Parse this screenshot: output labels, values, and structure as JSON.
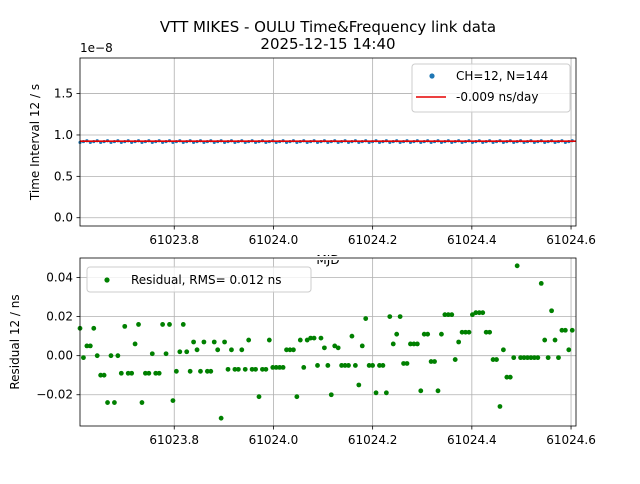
{
  "title_line1": "VTT MIKES - OULU Time&Frequency link data",
  "title_line2": "2025-12-15 14:40",
  "colors": {
    "blue": "#1f77b4",
    "red": "#e50000",
    "green": "#008000",
    "grid": "#b0b0b0"
  },
  "chart_data": [
    {
      "type": "scatter",
      "ylabel": "Time Interval 12 / s",
      "xlabel": "MJD",
      "offset_label": "1e−8",
      "xlim": [
        61023.61,
        61024.61
      ],
      "ylim": [
        -0.1,
        1.93
      ],
      "x_ticks": [
        61023.8,
        61024.0,
        61024.2,
        61024.4,
        61024.6
      ],
      "x_tick_labels": [
        "61023.8",
        "61024.0",
        "61024.2",
        "61024.4",
        "61024.6"
      ],
      "y_ticks": [
        0.0,
        0.5,
        1.0,
        1.5
      ],
      "y_tick_labels": [
        "0.0",
        "0.5",
        "1.0",
        "1.5"
      ],
      "grid": true,
      "legend_position": "top-right",
      "legend": [
        "CH=12, N=144",
        "-0.009 ns/day"
      ],
      "series": [
        {
          "name": "CH=12, N=144",
          "kind": "points",
          "x_start": 61023.61,
          "x_step": 0.00694,
          "count": 144,
          "y_value": 0.92,
          "y_jitter": 0.02
        },
        {
          "name": "-0.009 ns/day",
          "kind": "line",
          "x": [
            61023.61,
            61024.61
          ],
          "y": [
            0.925,
            0.925
          ]
        }
      ]
    },
    {
      "type": "scatter",
      "ylabel": "Residual 12 / ns",
      "xlim": [
        61023.61,
        61024.61
      ],
      "ylim": [
        -0.036,
        0.05
      ],
      "x_ticks": [
        61023.8,
        61024.0,
        61024.2,
        61024.4,
        61024.6
      ],
      "x_tick_labels": [
        "61023.8",
        "61024.0",
        "61024.2",
        "61024.4",
        "61024.6"
      ],
      "y_ticks": [
        -0.02,
        0.0,
        0.02,
        0.04
      ],
      "y_tick_labels": [
        "−0.02",
        "0.00",
        "0.02",
        "0.04"
      ],
      "grid": true,
      "legend_position": "top-left",
      "legend": [
        "Residual, RMS= 0.012 ns"
      ],
      "series": [
        {
          "name": "Residual, RMS= 0.012 ns",
          "x_start": 61023.61,
          "x_step": 0.00694,
          "y": [
            0.014,
            -0.001,
            0.005,
            0.005,
            0.014,
            0.0,
            -0.01,
            -0.01,
            -0.024,
            0.0,
            -0.024,
            0.0,
            -0.009,
            0.015,
            -0.009,
            -0.009,
            0.006,
            0.016,
            -0.024,
            -0.009,
            -0.009,
            0.001,
            -0.009,
            -0.009,
            0.016,
            0.001,
            0.016,
            -0.023,
            -0.008,
            0.002,
            0.016,
            0.002,
            -0.008,
            0.007,
            0.003,
            -0.008,
            0.007,
            -0.008,
            -0.008,
            0.007,
            0.003,
            -0.032,
            0.007,
            -0.007,
            0.003,
            -0.007,
            -0.007,
            0.003,
            -0.007,
            0.008,
            -0.007,
            -0.007,
            -0.021,
            -0.007,
            -0.007,
            0.008,
            -0.006,
            -0.006,
            -0.006,
            -0.006,
            0.003,
            0.003,
            0.003,
            -0.021,
            0.008,
            -0.006,
            0.008,
            0.009,
            0.009,
            -0.005,
            0.009,
            0.004,
            -0.005,
            -0.02,
            0.005,
            0.004,
            -0.005,
            -0.005,
            -0.005,
            0.01,
            -0.005,
            -0.015,
            0.005,
            0.019,
            -0.005,
            -0.005,
            -0.019,
            -0.005,
            -0.005,
            -0.019,
            0.02,
            0.006,
            0.011,
            0.02,
            -0.004,
            -0.004,
            0.006,
            0.006,
            0.006,
            -0.018,
            0.011,
            0.011,
            -0.003,
            -0.003,
            -0.018,
            0.011,
            0.021,
            0.021,
            0.021,
            -0.002,
            0.007,
            0.012,
            0.012,
            0.012,
            0.021,
            0.022,
            0.022,
            0.022,
            0.012,
            0.012,
            -0.002,
            -0.002,
            -0.026,
            0.003,
            -0.011,
            -0.011,
            -0.001,
            0.046,
            -0.001,
            -0.001,
            -0.001,
            -0.001,
            -0.001,
            -0.001,
            0.037,
            0.008,
            -0.001,
            0.023,
            0.008,
            -0.001,
            0.013,
            0.013,
            0.003,
            0.013
          ]
        }
      ]
    }
  ]
}
